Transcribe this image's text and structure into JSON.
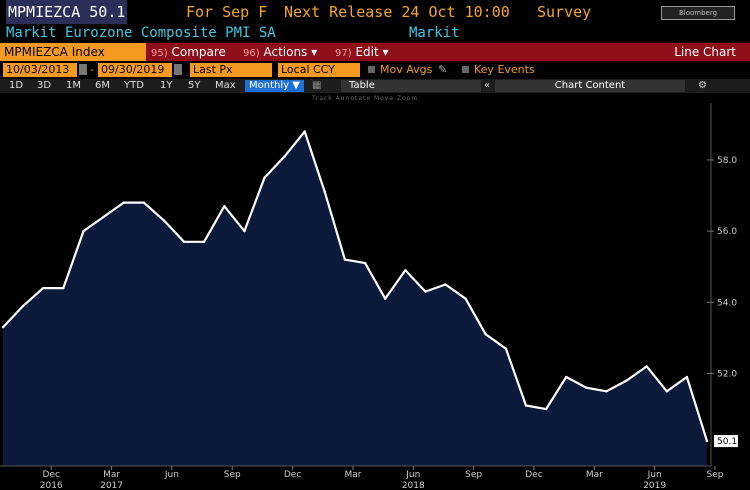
{
  "header": {
    "ticker_line": "MPMIEZCA 50.1",
    "for_label": "For Sep F",
    "next_release": "Next Release 24 Oct 10:00",
    "survey_label": "Survey",
    "logo_text": "Bloomberg",
    "description": "Markit Eurozone Composite PMI SA",
    "source": "Markit"
  },
  "toolbar": {
    "security": "MPMIEZCA Index",
    "compare_num": "95)",
    "compare": "Compare",
    "actions_num": "96)",
    "actions": "Actions ▾",
    "edit_num": "97)",
    "edit": "Edit ▾",
    "chart_type": "Line Chart"
  },
  "controls": {
    "start_date": "10/03/2013",
    "end_date": "09/30/2019",
    "price_field": "Last Px",
    "currency": "Local CCY",
    "mov_avgs": "Mov Avgs",
    "key_events": "Key Events"
  },
  "periods": {
    "tabs": [
      "1D",
      "3D",
      "1M",
      "6M",
      "YTD",
      "1Y",
      "5Y",
      "Max"
    ],
    "frequency": "Monthly ▼",
    "table": "Table",
    "chart_content": "Chart Content",
    "gear": "⚙",
    "collapse": "«",
    "mini_labels": "Track  Annotate  Move  Zoom"
  },
  "colors": {
    "fill": "#0b1a3a",
    "line": "#ffffff",
    "orange": "#f59a1e",
    "red_bar": "#8e0f1a",
    "cyan": "#3ec8e6"
  },
  "chart_data": {
    "type": "area",
    "x": [
      "2016-10",
      "2016-11",
      "2016-12",
      "2017-01",
      "2017-02",
      "2017-03",
      "2017-04",
      "2017-05",
      "2017-06",
      "2017-07",
      "2017-08",
      "2017-09",
      "2017-10",
      "2017-11",
      "2017-12",
      "2018-01",
      "2018-02",
      "2018-03",
      "2018-04",
      "2018-05",
      "2018-06",
      "2018-07",
      "2018-08",
      "2018-09",
      "2018-10",
      "2018-11",
      "2018-12",
      "2019-01",
      "2019-02",
      "2019-03",
      "2019-04",
      "2019-05",
      "2019-06",
      "2019-07",
      "2019-08",
      "2019-09"
    ],
    "values": [
      53.3,
      53.9,
      54.4,
      54.4,
      56.0,
      56.4,
      56.8,
      56.8,
      56.3,
      55.7,
      55.7,
      56.7,
      56.0,
      57.5,
      58.1,
      58.8,
      57.1,
      55.2,
      55.1,
      54.1,
      54.9,
      54.3,
      54.5,
      54.1,
      53.1,
      52.7,
      51.1,
      51.0,
      51.9,
      51.6,
      51.5,
      51.8,
      52.2,
      51.5,
      51.9,
      50.1
    ],
    "last_value_label": "50.1",
    "ylim": [
      49.4,
      59.6
    ],
    "y_ticks": [
      {
        "value": 52,
        "label": "52.0"
      },
      {
        "value": 54,
        "label": "54.0"
      },
      {
        "value": 56,
        "label": "56.0"
      },
      {
        "value": 58,
        "label": "58.0"
      }
    ],
    "x_ticks": [
      {
        "index": 2,
        "label": "Dec"
      },
      {
        "index": 5,
        "label": "Mar"
      },
      {
        "index": 8,
        "label": "Jun"
      },
      {
        "index": 11,
        "label": "Sep"
      },
      {
        "index": 14,
        "label": "Dec"
      },
      {
        "index": 17,
        "label": "Mar"
      },
      {
        "index": 20,
        "label": "Jun"
      },
      {
        "index": 23,
        "label": "Sep"
      },
      {
        "index": 26,
        "label": "Dec"
      },
      {
        "index": 29,
        "label": "Mar"
      },
      {
        "index": 32,
        "label": "Jun"
      },
      {
        "index": 35,
        "label": "Sep"
      }
    ],
    "year_labels": [
      {
        "index": 2,
        "label": "2016"
      },
      {
        "index": 5,
        "label": "2017"
      },
      {
        "index": 20,
        "label": "2018"
      },
      {
        "index": 32,
        "label": "2019"
      }
    ],
    "grid": false,
    "legend": "none"
  }
}
